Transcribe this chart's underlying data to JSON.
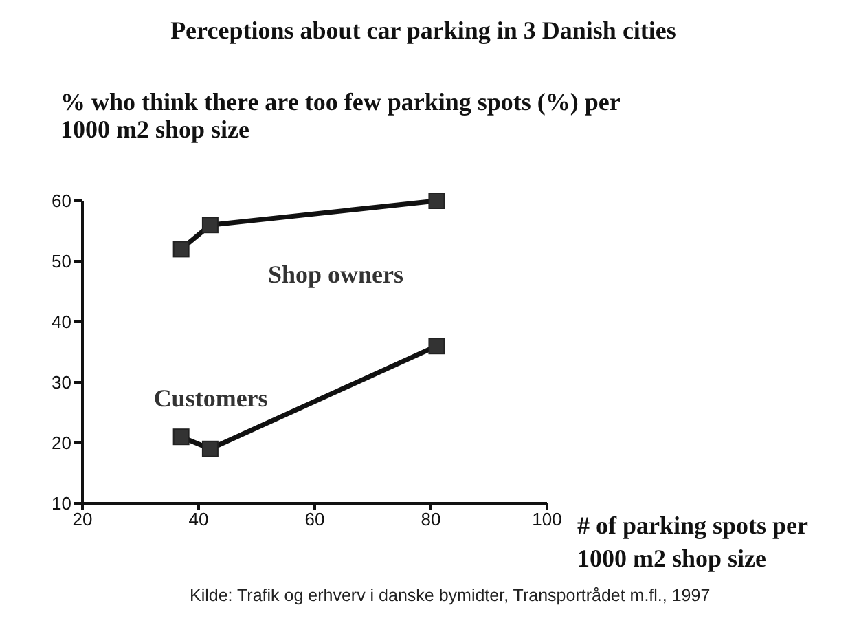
{
  "chart_data": {
    "type": "line",
    "title": "Perceptions about car parking in 3 Danish cities",
    "ylabel": "% who think there are too few parking spots (%) per 1000 m2 shop size",
    "xlabel": "# of parking spots per 1000 m2 shop size",
    "annotations": [
      "Kilde: Trafik og erhverv i danske bymidter, Transportrådet m.fl., 1997"
    ],
    "series": [
      {
        "name": "Shop owners",
        "color": "#333333",
        "x": [
          37,
          42,
          81
        ],
        "values": [
          52,
          56,
          60
        ]
      },
      {
        "name": "Customers",
        "color": "#333333",
        "x": [
          37,
          42,
          81
        ],
        "values": [
          21,
          19,
          36
        ]
      }
    ],
    "xlim": [
      20,
      100
    ],
    "xticks": [
      20,
      40,
      60,
      80,
      100
    ],
    "ylim": [
      10,
      60
    ],
    "yticks": [
      10,
      20,
      30,
      40,
      50,
      60
    ],
    "grid": false,
    "legend": false,
    "marker": "square",
    "line_style": "solid"
  }
}
